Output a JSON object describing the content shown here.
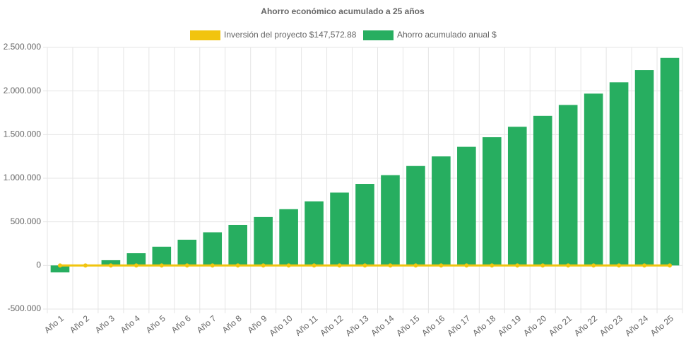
{
  "chart_data": {
    "type": "bar",
    "title": "Ahorro económico acumulado a 25 años",
    "categories": [
      "Año 1",
      "Año 2",
      "Año 3",
      "Año 4",
      "Año 5",
      "Año 6",
      "Año 7",
      "Año 8",
      "Año 9",
      "Año 10",
      "Año 11",
      "Año 12",
      "Año 13",
      "Año 14",
      "Año 15",
      "Año 16",
      "Año 17",
      "Año 18",
      "Año 19",
      "Año 20",
      "Año 21",
      "Año 22",
      "Año 23",
      "Año 24",
      "Año 25"
    ],
    "series": [
      {
        "name": "Inversión del proyecto $147,572.88",
        "type": "line",
        "color": "#f1c40f",
        "values": [
          0,
          0,
          0,
          0,
          0,
          0,
          0,
          0,
          0,
          0,
          0,
          0,
          0,
          0,
          0,
          0,
          0,
          0,
          0,
          0,
          0,
          0,
          0,
          0,
          0
        ]
      },
      {
        "name": "Ahorro acumulado anual $",
        "type": "bar",
        "color": "#27ae60",
        "values": [
          -80000,
          0,
          60000,
          140000,
          215000,
          295000,
          380000,
          465000,
          555000,
          645000,
          735000,
          835000,
          935000,
          1035000,
          1140000,
          1250000,
          1360000,
          1470000,
          1590000,
          1715000,
          1840000,
          1970000,
          2100000,
          2240000,
          2380000
        ]
      }
    ],
    "ylim": [
      -500000,
      2500000
    ],
    "yticks": [
      {
        "value": -500000,
        "label": "-500.000"
      },
      0,
      {
        "value": 500000,
        "label": "500.000"
      },
      {
        "value": 1000000,
        "label": "1.000.000"
      },
      {
        "value": 1500000,
        "label": "1.500.000"
      },
      {
        "value": 2000000,
        "label": "2.000.000"
      },
      {
        "value": 2500000,
        "label": "2.500.000"
      }
    ],
    "grid": true
  }
}
